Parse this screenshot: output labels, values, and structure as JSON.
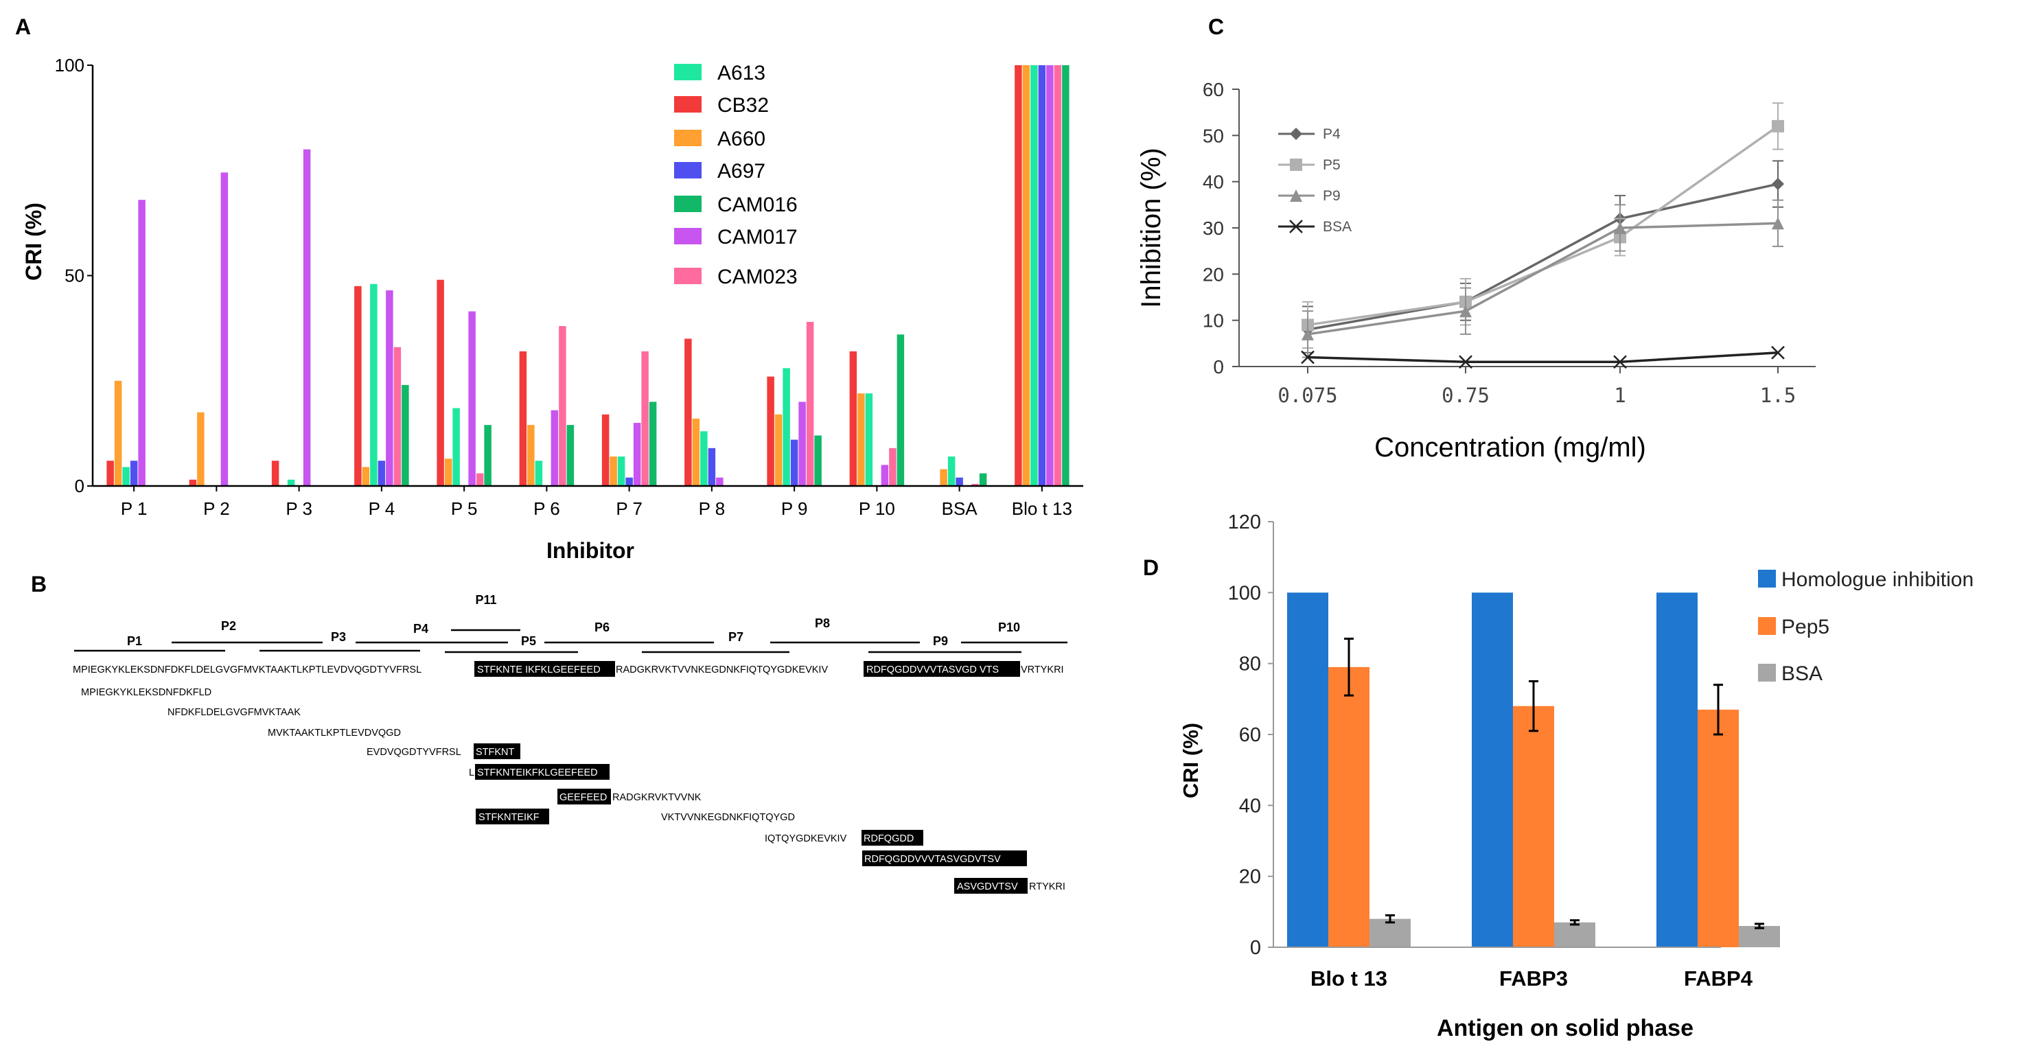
{
  "colors": {
    "A613": "#1ee8a0",
    "CB32": "#f23a3a",
    "A660": "#ffa030",
    "A697": "#5050f0",
    "CAM016": "#10b868",
    "CAM017": "#c855f0",
    "CAM023": "#ff6b9e",
    "P4": "#666666",
    "P5": "#b0b0b0",
    "P9": "#909090",
    "BSA_line": "#222222",
    "Homologue": "#1f77d0",
    "Pep5": "#ff8030",
    "BSA_bar": "#a6a6a6"
  },
  "chart_data": [
    {
      "id": "A",
      "panel_label": "A",
      "type": "bar",
      "title": "",
      "xlabel": "Inhibitor",
      "ylabel": "CRI (%)",
      "ylim": [
        0,
        100
      ],
      "yticks": [
        0,
        50,
        100
      ],
      "grid": false,
      "legend_position": "top-center",
      "categories": [
        "P 1",
        "P 2",
        "P 3",
        "P 4",
        "P 5",
        "P 6",
        "P 7",
        "P 8",
        "P 9",
        "P 10",
        "BSA",
        "Blo t 13"
      ],
      "series": [
        {
          "name": "A613",
          "color_key": "A613",
          "values": [
            4.5,
            0,
            1.5,
            48,
            18.5,
            6,
            7,
            13,
            28,
            22,
            7,
            100
          ]
        },
        {
          "name": "CB32",
          "color_key": "CB32",
          "values": [
            6,
            1.5,
            6,
            47.5,
            49,
            32,
            17,
            35,
            26,
            32,
            0,
            100
          ]
        },
        {
          "name": "A660",
          "color_key": "A660",
          "values": [
            25,
            17.5,
            0,
            4.5,
            6.5,
            14.5,
            7,
            16,
            17,
            22,
            4,
            100
          ]
        },
        {
          "name": "A697",
          "color_key": "A697",
          "values": [
            6,
            0,
            0,
            6,
            0,
            0,
            2,
            9,
            11,
            0,
            2,
            100
          ]
        },
        {
          "name": "CAM016",
          "color_key": "CAM016",
          "values": [
            0,
            0,
            0,
            24,
            14.5,
            14.5,
            20,
            0,
            12,
            36,
            3,
            100
          ]
        },
        {
          "name": "CAM017",
          "color_key": "CAM017",
          "values": [
            68,
            74.5,
            80,
            46.5,
            41.5,
            18,
            15,
            2,
            20,
            5,
            0,
            100
          ]
        },
        {
          "name": "CAM023",
          "color_key": "CAM023",
          "values": [
            0,
            0,
            0,
            33,
            3,
            38,
            32,
            0,
            39,
            9,
            0.5,
            100
          ]
        }
      ]
    },
    {
      "id": "C",
      "panel_label": "C",
      "type": "line",
      "title": "",
      "xlabel": "Concentration (mg/ml)",
      "ylabel": "Inhibition (%)",
      "ylim": [
        0,
        60
      ],
      "yticks": [
        0,
        10,
        20,
        30,
        40,
        50,
        60
      ],
      "categories": [
        "0.075",
        "0.75",
        "1",
        "1.5"
      ],
      "grid": false,
      "legend_position": "top-left",
      "series": [
        {
          "name": "P4",
          "color_key": "P4",
          "marker": "diamond",
          "values": [
            8,
            14,
            32,
            39.5
          ],
          "errors": [
            5,
            4,
            5,
            5
          ]
        },
        {
          "name": "P5",
          "color_key": "P5",
          "marker": "square",
          "values": [
            9,
            14,
            28,
            52
          ],
          "errors": [
            5,
            5,
            4,
            5
          ]
        },
        {
          "name": "P9",
          "color_key": "P9",
          "marker": "triangle",
          "values": [
            7,
            12,
            30,
            31
          ],
          "errors": [
            5,
            5,
            5,
            5
          ]
        },
        {
          "name": "BSA",
          "color_key": "BSA_line",
          "marker": "x",
          "values": [
            2,
            1,
            1,
            3
          ],
          "errors": [
            0,
            0,
            0,
            0
          ]
        }
      ]
    },
    {
      "id": "D",
      "panel_label": "D",
      "type": "bar",
      "title": "",
      "xlabel": "Antigen on solid phase",
      "ylabel": "CRI (%)",
      "ylim": [
        0,
        120
      ],
      "yticks": [
        0,
        20,
        40,
        60,
        80,
        100,
        120
      ],
      "grid": false,
      "legend_position": "right",
      "categories": [
        "Blo t 13",
        "FABP3",
        "FABP4"
      ],
      "series": [
        {
          "name": "Homologue inhibition",
          "color_key": "Homologue",
          "values": [
            100,
            100,
            100
          ],
          "errors": [
            0,
            0,
            0
          ]
        },
        {
          "name": "Pep5",
          "color_key": "Pep5",
          "values": [
            79,
            68,
            67
          ],
          "errors": [
            8,
            7,
            7
          ]
        },
        {
          "name": "BSA",
          "color_key": "BSA_bar",
          "values": [
            8,
            7,
            6
          ],
          "errors": [
            1,
            0.6,
            0.6
          ]
        }
      ]
    }
  ],
  "panel_b": {
    "label": "B",
    "main_sequence": [
      "MPIEGKYKLEKSDNFDKFLDELGVGFMVKTAAKTLKPTLEVDVQGDTYVFRSL",
      "STFKNTE IKFKLGEEFEED",
      "RADGKRVKTVVNKEGDNKFIQTQYGDKEVKIV",
      "RDFQGDDVVVTASVGD VTS",
      "VRTYKRI"
    ],
    "peptide_labels": [
      {
        "id": "p1",
        "text": "P1"
      },
      {
        "id": "p2",
        "text": "P2"
      },
      {
        "id": "p3",
        "text": "P3"
      },
      {
        "id": "p4",
        "text": "P4"
      },
      {
        "id": "p5",
        "text": "P5"
      },
      {
        "id": "p6",
        "text": "P6"
      },
      {
        "id": "p7",
        "text": "P7"
      },
      {
        "id": "p8",
        "text": "P8"
      },
      {
        "id": "p9",
        "text": "P9"
      },
      {
        "id": "p10",
        "text": "P10"
      },
      {
        "id": "p11",
        "text": "P11"
      }
    ],
    "fragments": [
      {
        "plain_before": "MPIEGKYKLEKSDNFDKFLD",
        "highlight": "",
        "plain_after": ""
      },
      {
        "plain_before": "NFDKFLDELGVGFMVKTAAK",
        "highlight": "",
        "plain_after": ""
      },
      {
        "plain_before": "MVKTAAKTLKPTLEVDVQGD",
        "highlight": "",
        "plain_after": ""
      },
      {
        "plain_before": "EVDVQGDTYVFRSL",
        "highlight": "STFKNT",
        "plain_after": ""
      },
      {
        "plain_before": "L",
        "highlight": "STFKNTEIKFKLGEEFEED",
        "plain_after": ""
      },
      {
        "plain_before": "",
        "highlight": "GEEFEED",
        "plain_after": "RADGKRVKTVVNK"
      },
      {
        "plain_before": "",
        "highlight": "STFKNTEIKF",
        "plain_after": ""
      },
      {
        "plain_before": "VKTVVNKEGDNKFIQTQYGD",
        "highlight": "",
        "plain_after": ""
      },
      {
        "plain_before": "IQTQYGDKEVKIV",
        "highlight": "RDFQGDD",
        "plain_after": ""
      },
      {
        "plain_before": "",
        "highlight": "RDFQGDDVVVTASVGDVTSV",
        "plain_after": ""
      },
      {
        "plain_before": "",
        "highlight": "ASVGDVTSV",
        "plain_after": "RTYKRI"
      }
    ]
  }
}
